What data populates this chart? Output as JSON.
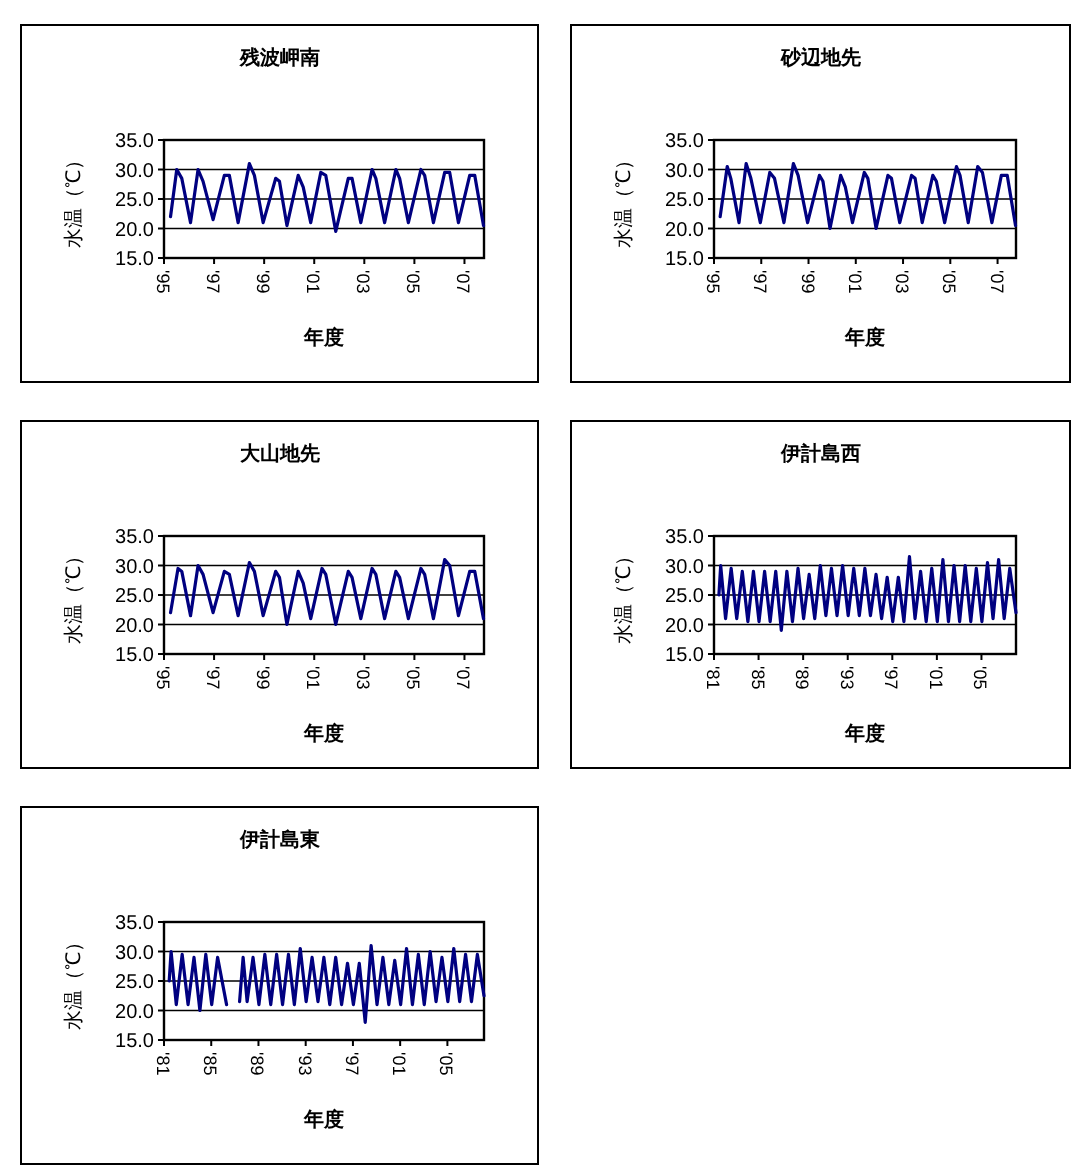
{
  "chart_data": [
    {
      "type": "line",
      "title": "残波岬南",
      "xlabel": "年度",
      "ylabel": "水温（℃）",
      "grid": "y",
      "xlim": [
        1995,
        2007.78
      ],
      "ylim": [
        15,
        35
      ],
      "xticks": [
        {
          "value": 1995,
          "label": "'95"
        },
        {
          "value": 1997,
          "label": "'97"
        },
        {
          "value": 1999,
          "label": "'99"
        },
        {
          "value": 2001,
          "label": "'01"
        },
        {
          "value": 2003,
          "label": "'03"
        },
        {
          "value": 2005,
          "label": "'05"
        },
        {
          "value": 2007,
          "label": "'07"
        }
      ],
      "yticks": [
        {
          "value": 15,
          "label": "15.0"
        },
        {
          "value": 20,
          "label": "20.0"
        },
        {
          "value": 25,
          "label": "25.0"
        },
        {
          "value": 30,
          "label": "30.0"
        },
        {
          "value": 35,
          "label": "35.0"
        }
      ],
      "series": [
        {
          "color": "#000080",
          "x": [
            1995.26,
            1995.51,
            1995.71,
            1996.06,
            1996.36,
            1996.56,
            1996.96,
            1997.41,
            1997.61,
            1997.96,
            1998.41,
            1998.61,
            1998.96,
            1999.46,
            1999.61,
            1999.91,
            2000.36,
            2000.56,
            2000.86,
            2001.26,
            2001.46,
            2001.86,
            2002.36,
            2002.51,
            2002.86,
            2003.31,
            2003.46,
            2003.81,
            2004.26,
            2004.41,
            2004.76,
            2005.26,
            2005.41,
            2005.76,
            2006.21,
            2006.41,
            2006.76,
            2007.21,
            2007.41,
            2007.76
          ],
          "values": [
            22,
            30,
            28.5,
            21,
            30,
            28,
            21.5,
            29,
            29,
            21,
            31,
            29,
            21,
            28.5,
            28,
            20.5,
            29,
            27,
            21,
            29.5,
            29,
            19.5,
            28.5,
            28.5,
            21,
            30,
            28.5,
            21,
            30,
            28.5,
            21,
            30,
            29,
            21,
            29.5,
            29.5,
            21,
            29,
            29,
            20.5
          ]
        }
      ]
    },
    {
      "type": "line",
      "title": "砂辺地先",
      "xlabel": "年度",
      "ylabel": "水温（℃）",
      "grid": "y",
      "xlim": [
        1995,
        2007.78
      ],
      "ylim": [
        15,
        35
      ],
      "xticks": [
        {
          "value": 1995,
          "label": "'95"
        },
        {
          "value": 1997,
          "label": "'97"
        },
        {
          "value": 1999,
          "label": "'99"
        },
        {
          "value": 2001,
          "label": "'01"
        },
        {
          "value": 2003,
          "label": "'03"
        },
        {
          "value": 2005,
          "label": "'05"
        },
        {
          "value": 2007,
          "label": "'07"
        }
      ],
      "yticks": [
        {
          "value": 15,
          "label": "15.0"
        },
        {
          "value": 20,
          "label": "20.0"
        },
        {
          "value": 25,
          "label": "25.0"
        },
        {
          "value": 30,
          "label": "30.0"
        },
        {
          "value": 35,
          "label": "35.0"
        }
      ],
      "series": [
        {
          "color": "#000080",
          "x": [
            1995.26,
            1995.56,
            1995.71,
            1996.06,
            1996.36,
            1996.56,
            1996.96,
            1997.36,
            1997.56,
            1997.96,
            1998.36,
            1998.56,
            1998.96,
            1999.46,
            1999.61,
            1999.91,
            2000.36,
            2000.56,
            2000.86,
            2001.36,
            2001.51,
            2001.86,
            2002.36,
            2002.51,
            2002.86,
            2003.36,
            2003.51,
            2003.81,
            2004.26,
            2004.41,
            2004.76,
            2005.26,
            2005.41,
            2005.76,
            2006.16,
            2006.36,
            2006.76,
            2007.16,
            2007.41,
            2007.76
          ],
          "values": [
            22,
            30.5,
            28.5,
            21,
            31,
            28.5,
            21,
            29.5,
            28.5,
            21,
            31,
            29,
            21,
            29,
            28,
            20,
            29,
            27,
            21,
            29.5,
            28.5,
            20,
            29,
            28.5,
            21,
            29,
            28.5,
            21,
            29,
            28,
            21,
            30.5,
            29,
            21,
            30.5,
            29.5,
            21,
            29,
            29,
            20.5
          ]
        }
      ]
    },
    {
      "type": "line",
      "title": "大山地先",
      "xlabel": "年度",
      "ylabel": "水温（℃）",
      "grid": "y",
      "xlim": [
        1995,
        2007.78
      ],
      "ylim": [
        15,
        35
      ],
      "xticks": [
        {
          "value": 1995,
          "label": "'95"
        },
        {
          "value": 1997,
          "label": "'97"
        },
        {
          "value": 1999,
          "label": "'99"
        },
        {
          "value": 2001,
          "label": "'01"
        },
        {
          "value": 2003,
          "label": "'03"
        },
        {
          "value": 2005,
          "label": "'05"
        },
        {
          "value": 2007,
          "label": "'07"
        }
      ],
      "yticks": [
        {
          "value": 15,
          "label": "15.0"
        },
        {
          "value": 20,
          "label": "20.0"
        },
        {
          "value": 25,
          "label": "25.0"
        },
        {
          "value": 30,
          "label": "30.0"
        },
        {
          "value": 35,
          "label": "35.0"
        }
      ],
      "series": [
        {
          "color": "#000080",
          "x": [
            1995.26,
            1995.56,
            1995.71,
            1996.06,
            1996.36,
            1996.56,
            1996.96,
            1997.41,
            1997.61,
            1997.96,
            1998.41,
            1998.61,
            1998.96,
            1999.46,
            1999.61,
            1999.91,
            2000.36,
            2000.56,
            2000.86,
            2001.31,
            2001.46,
            2001.86,
            2002.36,
            2002.51,
            2002.86,
            2003.31,
            2003.46,
            2003.81,
            2004.26,
            2004.41,
            2004.76,
            2005.26,
            2005.41,
            2005.76,
            2006.21,
            2006.41,
            2006.76,
            2007.21,
            2007.41,
            2007.76
          ],
          "values": [
            22,
            29.5,
            29,
            21.5,
            30,
            28.5,
            22,
            29,
            28.5,
            21.5,
            30.5,
            29,
            21.5,
            29,
            28,
            20,
            29,
            27,
            21,
            29.5,
            28.5,
            20,
            29,
            28,
            21,
            29.5,
            28.5,
            21,
            29,
            28,
            21,
            29.5,
            28.5,
            21,
            31,
            30,
            21.5,
            29,
            29,
            21
          ]
        }
      ]
    },
    {
      "type": "line",
      "title": "伊計島西",
      "xlabel": "年度",
      "ylabel": "水温（℃）",
      "grid": "y",
      "xlim": [
        1981,
        2008.1
      ],
      "ylim": [
        15,
        35
      ],
      "xticks": [
        {
          "value": 1981,
          "label": "'81"
        },
        {
          "value": 1985,
          "label": "'85"
        },
        {
          "value": 1989,
          "label": "'89"
        },
        {
          "value": 1993,
          "label": "'93"
        },
        {
          "value": 1997,
          "label": "'97"
        },
        {
          "value": 2001,
          "label": "'01"
        },
        {
          "value": 2005,
          "label": "'05"
        }
      ],
      "yticks": [
        {
          "value": 15,
          "label": "15.0"
        },
        {
          "value": 20,
          "label": "20.0"
        },
        {
          "value": 25,
          "label": "25.0"
        },
        {
          "value": 30,
          "label": "30.0"
        },
        {
          "value": 35,
          "label": "35.0"
        }
      ],
      "series": [
        {
          "color": "#000080",
          "x": [
            1981.44,
            1981.6,
            1982.04,
            1982.54,
            1983.04,
            1983.54,
            1984.04,
            1984.54,
            1985.04,
            1985.54,
            1986.04,
            1986.54,
            1987.04,
            1987.54,
            1988.04,
            1988.54,
            1989.04,
            1989.54,
            1990.04,
            1990.54,
            1991.04,
            1991.54,
            1992.04,
            1992.54,
            1993.04,
            1993.54,
            1994.04,
            1994.54,
            1995.04,
            1995.54,
            1996.04,
            1996.54,
            1997.04,
            1997.54,
            1998.04,
            1998.54,
            1999.04,
            1999.54,
            2000.04,
            2000.54,
            2001.04,
            2001.54,
            2002.04,
            2002.54,
            2003.04,
            2003.54,
            2004.04,
            2004.54,
            2005.04,
            2005.54,
            2006.04,
            2006.54,
            2007.04,
            2007.54,
            2008.1
          ],
          "values": [
            25,
            30,
            21,
            29.5,
            21,
            29,
            20.5,
            29,
            20.5,
            29,
            20.5,
            29,
            19,
            29,
            20.5,
            29.5,
            21,
            28.5,
            21,
            30,
            21.5,
            29.5,
            21.5,
            30,
            21.5,
            29.5,
            21.5,
            29.5,
            21.5,
            28.5,
            21,
            28,
            20.5,
            28,
            20.5,
            31.5,
            21,
            29,
            20.5,
            29.5,
            20.5,
            31,
            20.5,
            30,
            20.5,
            30,
            20.5,
            29.5,
            20.5,
            30.5,
            21,
            31,
            21,
            29.5,
            22
          ]
        }
      ]
    },
    {
      "type": "line",
      "title": "伊計島東",
      "xlabel": "年度",
      "ylabel": "水温（℃）",
      "grid": "y",
      "xlim": [
        1981,
        2008.1
      ],
      "ylim": [
        15,
        35
      ],
      "xticks": [
        {
          "value": 1981,
          "label": "'81"
        },
        {
          "value": 1985,
          "label": "'85"
        },
        {
          "value": 1989,
          "label": "'89"
        },
        {
          "value": 1993,
          "label": "'93"
        },
        {
          "value": 1997,
          "label": "'97"
        },
        {
          "value": 2001,
          "label": "'01"
        },
        {
          "value": 2005,
          "label": "'05"
        }
      ],
      "yticks": [
        {
          "value": 15,
          "label": "15.0"
        },
        {
          "value": 20,
          "label": "20.0"
        },
        {
          "value": 25,
          "label": "25.0"
        },
        {
          "value": 30,
          "label": "30.0"
        },
        {
          "value": 35,
          "label": "35.0"
        }
      ],
      "series": [
        {
          "color": "#000080",
          "x": [
            1981.44,
            1981.6,
            1982.04,
            1982.54,
            1983.04,
            1983.54,
            1984.04,
            1984.54,
            1985.04,
            1985.54,
            1986.3,
            1986.8,
            1987.4,
            1987.7,
            1988.04,
            1988.54,
            1989.04,
            1989.54,
            1990.04,
            1990.54,
            1991.04,
            1991.54,
            1992.04,
            1992.54,
            1993.04,
            1993.54,
            1994.04,
            1994.54,
            1995.04,
            1995.54,
            1996.04,
            1996.54,
            1997.04,
            1997.54,
            1998.04,
            1998.54,
            1999.04,
            1999.54,
            2000.04,
            2000.54,
            2001.04,
            2001.54,
            2002.04,
            2002.54,
            2003.04,
            2003.54,
            2004.04,
            2004.54,
            2005.04,
            2005.54,
            2006.04,
            2006.54,
            2007.04,
            2007.54,
            2008.1
          ],
          "values": [
            25,
            30,
            21,
            29.5,
            21,
            29,
            20,
            29.5,
            21,
            29,
            21,
            null,
            21.5,
            29,
            21.5,
            29,
            21,
            29.5,
            21,
            29.5,
            21,
            29.5,
            21,
            30.5,
            21.5,
            29,
            21.5,
            29,
            21,
            29,
            21,
            28,
            21,
            28,
            18,
            31,
            21,
            29,
            21,
            28.5,
            21,
            30.5,
            21,
            29.5,
            21,
            30,
            21.5,
            29,
            21.5,
            30.5,
            21.5,
            29.5,
            21.5,
            29.5,
            22.5
          ]
        }
      ]
    }
  ]
}
